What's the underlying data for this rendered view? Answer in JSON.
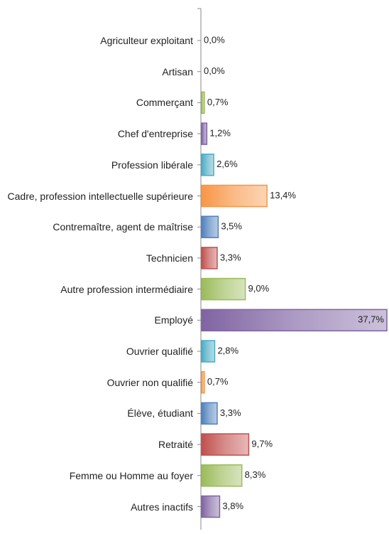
{
  "chart_data": {
    "type": "bar",
    "orientation": "horizontal",
    "categories": [
      "Agriculteur exploitant",
      "Artisan",
      "Commerçant",
      "Chef d'entreprise",
      "Profession libérale",
      "Cadre, profession intellectuelle supérieure",
      "Contremaître, agent de maîtrise",
      "Technicien",
      "Autre profession intermédiaire",
      "Employé",
      "Ouvrier qualifié",
      "Ouvrier non qualifié",
      "Élève, étudiant",
      "Retraité",
      "Femme ou Homme au foyer",
      "Autres inactifs"
    ],
    "values": [
      0.0,
      0.0,
      0.7,
      1.2,
      2.6,
      13.4,
      3.5,
      3.3,
      9.0,
      37.7,
      2.8,
      0.7,
      3.3,
      9.7,
      8.3,
      3.8
    ],
    "value_labels": [
      "0,0%",
      "0,0%",
      "0,7%",
      "1,2%",
      "2,6%",
      "13,4%",
      "3,5%",
      "3,3%",
      "9,0%",
      "37,7%",
      "2,8%",
      "0,7%",
      "3,3%",
      "9,7%",
      "8,3%",
      "3,8%"
    ],
    "colors": [
      "#4f81bd",
      "#c0504d",
      "#9bbb59",
      "#8064a2",
      "#4bacc6",
      "#f79646",
      "#4f81bd",
      "#c0504d",
      "#9bbb59",
      "#8064a2",
      "#4bacc6",
      "#f79646",
      "#4f81bd",
      "#c0504d",
      "#9bbb59",
      "#8064a2"
    ]
  }
}
